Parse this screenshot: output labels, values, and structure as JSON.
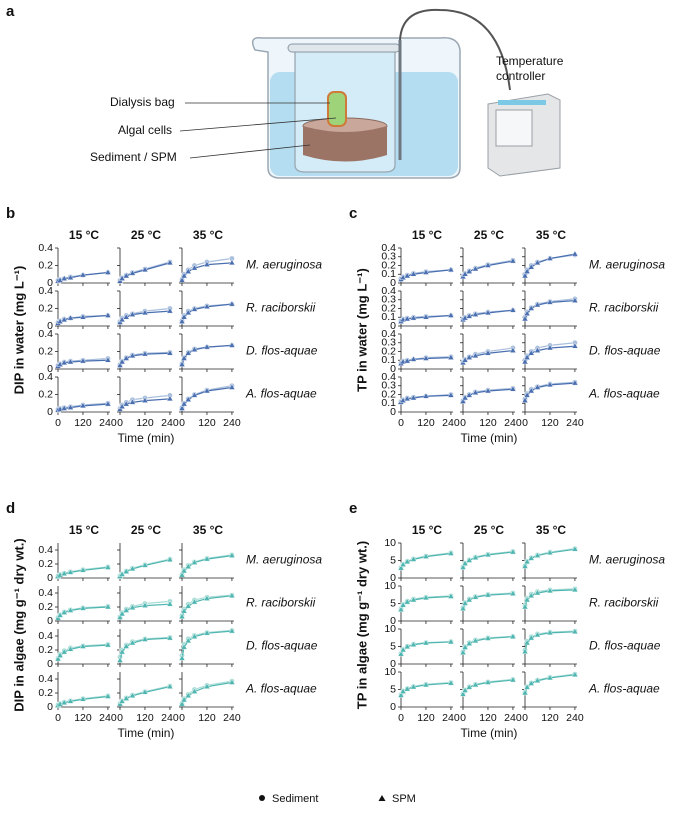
{
  "diagram": {
    "panel": "a",
    "labels": [
      "Dialysis bag",
      "Algal cells",
      "Sediment / SPM"
    ],
    "controller": [
      "Temperature",
      "controller"
    ]
  },
  "chart_data": [
    {
      "type": "line",
      "panel": "b",
      "ylabel": "DIP in water (mg L⁻¹)",
      "xlabel": "Time (min)",
      "columns": [
        "15 °C",
        "25 °C",
        "35 °C"
      ],
      "rows": [
        "M. aeruginosa",
        "R. raciborskii",
        "D. flos-aquae",
        "A. flos-aquae"
      ],
      "series": [
        {
          "name": "Sediment",
          "color": "#a9bfdc",
          "marker": "circle"
        },
        {
          "name": "SPM",
          "color": "#4a6fb0",
          "marker": "triangle"
        }
      ],
      "x": [
        0,
        10,
        30,
        60,
        120,
        240
      ],
      "xlim": [
        0,
        250
      ],
      "xticks": [
        0,
        120,
        240
      ],
      "ylim": [
        0,
        0.4
      ],
      "yticks": [
        0,
        0.2,
        0.4
      ],
      "data": [
        [
          [
            0.03,
            0.04,
            0.05,
            0.07,
            0.09,
            0.12
          ],
          [
            0.02,
            0.03,
            0.05,
            0.06,
            0.09,
            0.12
          ]
        ],
        [
          [
            0.03,
            0.06,
            0.09,
            0.12,
            0.16,
            0.24
          ],
          [
            0.02,
            0.05,
            0.08,
            0.11,
            0.15,
            0.23
          ]
        ],
        [
          [
            0.04,
            0.1,
            0.15,
            0.2,
            0.24,
            0.28
          ],
          [
            0.03,
            0.08,
            0.13,
            0.17,
            0.21,
            0.23
          ]
        ],
        [
          [
            0.04,
            0.06,
            0.08,
            0.09,
            0.11,
            0.12
          ],
          [
            0.03,
            0.05,
            0.07,
            0.09,
            0.1,
            0.12
          ]
        ],
        [
          [
            0.05,
            0.09,
            0.12,
            0.14,
            0.17,
            0.2
          ],
          [
            0.04,
            0.07,
            0.1,
            0.13,
            0.15,
            0.17
          ]
        ],
        [
          [
            0.06,
            0.12,
            0.17,
            0.2,
            0.23,
            0.25
          ],
          [
            0.05,
            0.1,
            0.15,
            0.19,
            0.22,
            0.25
          ]
        ],
        [
          [
            0.04,
            0.06,
            0.08,
            0.09,
            0.1,
            0.12
          ],
          [
            0.03,
            0.05,
            0.07,
            0.08,
            0.09,
            0.1
          ]
        ],
        [
          [
            0.05,
            0.09,
            0.13,
            0.16,
            0.18,
            0.19
          ],
          [
            0.04,
            0.08,
            0.12,
            0.15,
            0.17,
            0.18
          ]
        ],
        [
          [
            0.06,
            0.13,
            0.19,
            0.23,
            0.25,
            0.27
          ],
          [
            0.05,
            0.12,
            0.18,
            0.22,
            0.25,
            0.27
          ]
        ],
        [
          [
            0.03,
            0.04,
            0.05,
            0.06,
            0.08,
            0.1
          ],
          [
            0.02,
            0.03,
            0.04,
            0.05,
            0.07,
            0.09
          ]
        ],
        [
          [
            0.04,
            0.08,
            0.11,
            0.14,
            0.16,
            0.19
          ],
          [
            0.03,
            0.06,
            0.09,
            0.11,
            0.13,
            0.15
          ]
        ],
        [
          [
            0.05,
            0.1,
            0.15,
            0.2,
            0.25,
            0.3
          ],
          [
            0.04,
            0.09,
            0.14,
            0.19,
            0.24,
            0.28
          ]
        ]
      ]
    },
    {
      "type": "line",
      "panel": "c",
      "ylabel": "TP in water (mg L⁻¹)",
      "xlabel": "Time (min)",
      "columns": [
        "15 °C",
        "25 °C",
        "35 °C"
      ],
      "rows": [
        "M. aeruginosa",
        "R. raciborskii",
        "D. flos-aquae",
        "A. flos-aquae"
      ],
      "series": [
        {
          "name": "Sediment",
          "color": "#a9bfdc",
          "marker": "circle"
        },
        {
          "name": "SPM",
          "color": "#4a6fb0",
          "marker": "triangle"
        }
      ],
      "x": [
        0,
        10,
        30,
        60,
        120,
        240
      ],
      "xlim": [
        0,
        250
      ],
      "xticks": [
        0,
        120,
        240
      ],
      "ylim": [
        0,
        0.4
      ],
      "yticks": [
        0,
        0.1,
        0.2,
        0.3,
        0.4
      ],
      "data": [
        [
          [
            0.05,
            0.07,
            0.09,
            0.11,
            0.13,
            0.15
          ],
          [
            0.04,
            0.06,
            0.08,
            0.1,
            0.12,
            0.15
          ]
        ],
        [
          [
            0.08,
            0.11,
            0.14,
            0.17,
            0.21,
            0.26
          ],
          [
            0.07,
            0.1,
            0.13,
            0.16,
            0.2,
            0.25
          ]
        ],
        [
          [
            0.1,
            0.15,
            0.2,
            0.24,
            0.28,
            0.32
          ],
          [
            0.08,
            0.13,
            0.18,
            0.23,
            0.28,
            0.33
          ]
        ],
        [
          [
            0.06,
            0.08,
            0.09,
            0.1,
            0.11,
            0.12
          ],
          [
            0.05,
            0.07,
            0.08,
            0.09,
            0.1,
            0.12
          ]
        ],
        [
          [
            0.08,
            0.1,
            0.12,
            0.14,
            0.16,
            0.18
          ],
          [
            0.07,
            0.09,
            0.11,
            0.13,
            0.15,
            0.18
          ]
        ],
        [
          [
            0.1,
            0.16,
            0.21,
            0.25,
            0.28,
            0.31
          ],
          [
            0.08,
            0.14,
            0.2,
            0.24,
            0.27,
            0.29
          ]
        ],
        [
          [
            0.07,
            0.09,
            0.1,
            0.11,
            0.13,
            0.14
          ],
          [
            0.06,
            0.08,
            0.09,
            0.11,
            0.12,
            0.13
          ]
        ],
        [
          [
            0.08,
            0.11,
            0.14,
            0.17,
            0.2,
            0.24
          ],
          [
            0.07,
            0.1,
            0.13,
            0.15,
            0.18,
            0.21
          ]
        ],
        [
          [
            0.1,
            0.15,
            0.2,
            0.24,
            0.27,
            0.3
          ],
          [
            0.08,
            0.13,
            0.18,
            0.21,
            0.24,
            0.26
          ]
        ],
        [
          [
            0.12,
            0.14,
            0.16,
            0.17,
            0.18,
            0.2
          ],
          [
            0.11,
            0.13,
            0.15,
            0.16,
            0.18,
            0.19
          ]
        ],
        [
          [
            0.13,
            0.17,
            0.2,
            0.23,
            0.25,
            0.27
          ],
          [
            0.12,
            0.16,
            0.19,
            0.22,
            0.24,
            0.26
          ]
        ],
        [
          [
            0.15,
            0.21,
            0.26,
            0.29,
            0.32,
            0.34
          ],
          [
            0.13,
            0.19,
            0.24,
            0.28,
            0.31,
            0.33
          ]
        ]
      ]
    },
    {
      "type": "line",
      "panel": "d",
      "ylabel": "DIP in algae (mg g⁻¹ dry wt.)",
      "xlabel": "Time (min)",
      "columns": [
        "15 °C",
        "25 °C",
        "35 °C"
      ],
      "rows": [
        "M. aeruginosa",
        "R. raciborskii",
        "D. flos-aquae",
        "A. flos-aquae"
      ],
      "series": [
        {
          "name": "Sediment",
          "color": "#a8dcd6",
          "marker": "circle"
        },
        {
          "name": "SPM",
          "color": "#4fb5b0",
          "marker": "triangle"
        }
      ],
      "x": [
        0,
        10,
        30,
        60,
        120,
        240
      ],
      "xlim": [
        0,
        250
      ],
      "xticks": [
        0,
        120,
        240
      ],
      "ylim": [
        0,
        0.5
      ],
      "yticks": [
        0,
        0.2,
        0.4
      ],
      "data": [
        [
          [
            0.03,
            0.05,
            0.07,
            0.09,
            0.12,
            0.16
          ],
          [
            0.02,
            0.04,
            0.06,
            0.08,
            0.11,
            0.15
          ]
        ],
        [
          [
            0.03,
            0.06,
            0.1,
            0.14,
            0.19,
            0.27
          ],
          [
            0.02,
            0.05,
            0.09,
            0.13,
            0.18,
            0.26
          ]
        ],
        [
          [
            0.05,
            0.12,
            0.18,
            0.23,
            0.28,
            0.33
          ],
          [
            0.04,
            0.1,
            0.16,
            0.22,
            0.27,
            0.32
          ]
        ],
        [
          [
            0.05,
            0.09,
            0.13,
            0.16,
            0.19,
            0.21
          ],
          [
            0.04,
            0.08,
            0.12,
            0.15,
            0.18,
            0.2
          ]
        ],
        [
          [
            0.06,
            0.12,
            0.17,
            0.21,
            0.25,
            0.28
          ],
          [
            0.05,
            0.1,
            0.15,
            0.19,
            0.22,
            0.24
          ]
        ],
        [
          [
            0.08,
            0.17,
            0.24,
            0.3,
            0.34,
            0.37
          ],
          [
            0.06,
            0.14,
            0.21,
            0.27,
            0.32,
            0.36
          ]
        ],
        [
          [
            0.08,
            0.14,
            0.19,
            0.23,
            0.26,
            0.28
          ],
          [
            0.07,
            0.12,
            0.17,
            0.21,
            0.25,
            0.27
          ]
        ],
        [
          [
            0.1,
            0.2,
            0.27,
            0.32,
            0.36,
            0.38
          ],
          [
            0.05,
            0.17,
            0.25,
            0.3,
            0.35,
            0.37
          ]
        ],
        [
          [
            0.12,
            0.28,
            0.36,
            0.41,
            0.45,
            0.48
          ],
          [
            0.08,
            0.24,
            0.33,
            0.39,
            0.44,
            0.47
          ]
        ],
        [
          [
            0.03,
            0.05,
            0.07,
            0.09,
            0.12,
            0.16
          ],
          [
            0.02,
            0.04,
            0.06,
            0.08,
            0.11,
            0.15
          ]
        ],
        [
          [
            0.05,
            0.09,
            0.13,
            0.17,
            0.22,
            0.3
          ],
          [
            0.04,
            0.08,
            0.12,
            0.16,
            0.21,
            0.29
          ]
        ],
        [
          [
            0.05,
            0.12,
            0.18,
            0.25,
            0.31,
            0.37
          ],
          [
            0.04,
            0.1,
            0.16,
            0.22,
            0.29,
            0.35
          ]
        ]
      ]
    },
    {
      "type": "line",
      "panel": "e",
      "ylabel": "TP in algae (mg g⁻¹ dry wt.)",
      "xlabel": "Time (min)",
      "columns": [
        "15 °C",
        "25 °C",
        "35 °C"
      ],
      "rows": [
        "M. aeruginosa",
        "R. raciborskii",
        "D. flos-aquae",
        "A. flos-aquae"
      ],
      "series": [
        {
          "name": "Sediment",
          "color": "#a8dcd6",
          "marker": "circle"
        },
        {
          "name": "SPM",
          "color": "#4fb5b0",
          "marker": "triangle"
        }
      ],
      "x": [
        0,
        10,
        30,
        60,
        120,
        240
      ],
      "xlim": [
        0,
        250
      ],
      "xticks": [
        0,
        120,
        240
      ],
      "ylim": [
        0,
        10
      ],
      "yticks": [
        0,
        5,
        10
      ],
      "data": [
        [
          [
            3,
            4,
            4.8,
            5.5,
            6.3,
            7.2
          ],
          [
            2.8,
            3.8,
            4.6,
            5.3,
            6.1,
            7
          ]
        ],
        [
          [
            3.2,
            4.3,
            5.2,
            6,
            6.8,
            7.6
          ],
          [
            3,
            4.1,
            5,
            5.8,
            6.6,
            7.4
          ]
        ],
        [
          [
            3.5,
            4.8,
            5.8,
            6.6,
            7.4,
            8.4
          ],
          [
            3.3,
            4.6,
            5.6,
            6.4,
            7.2,
            8.2
          ]
        ],
        [
          [
            3.5,
            4.8,
            5.7,
            6.3,
            6.8,
            7.2
          ],
          [
            3.2,
            4.5,
            5.4,
            6,
            6.6,
            7
          ]
        ],
        [
          [
            3.8,
            5.3,
            6.3,
            7,
            7.6,
            8
          ],
          [
            3.5,
            5,
            6,
            6.8,
            7.4,
            7.8
          ]
        ],
        [
          [
            4.5,
            6.5,
            7.7,
            8.4,
            8.9,
            9.2
          ],
          [
            4,
            6,
            7.2,
            8,
            8.6,
            8.9
          ]
        ],
        [
          [
            3,
            4.2,
            5.1,
            5.7,
            6.1,
            6.4
          ],
          [
            2.8,
            4,
            4.9,
            5.5,
            6,
            6.3
          ]
        ],
        [
          [
            3.5,
            5,
            6.1,
            6.9,
            7.5,
            7.9
          ],
          [
            3.2,
            4.7,
            5.8,
            6.6,
            7.3,
            7.8
          ]
        ],
        [
          [
            4,
            6.5,
            7.8,
            8.6,
            9.1,
            9.4
          ],
          [
            3.5,
            6,
            7.4,
            8.3,
            8.9,
            9.2
          ]
        ],
        [
          [
            3.5,
            4.6,
            5.3,
            5.9,
            6.5,
            7
          ],
          [
            3.3,
            4.4,
            5.1,
            5.7,
            6.3,
            6.8
          ]
        ],
        [
          [
            3.8,
            4.9,
            5.8,
            6.5,
            7.2,
            7.9
          ],
          [
            3.6,
            4.7,
            5.6,
            6.3,
            7,
            7.7
          ]
        ],
        [
          [
            4.2,
            5.8,
            6.9,
            7.7,
            8.5,
            9.4
          ],
          [
            4,
            5.6,
            6.7,
            7.5,
            8.3,
            9.2
          ]
        ]
      ]
    }
  ]
}
